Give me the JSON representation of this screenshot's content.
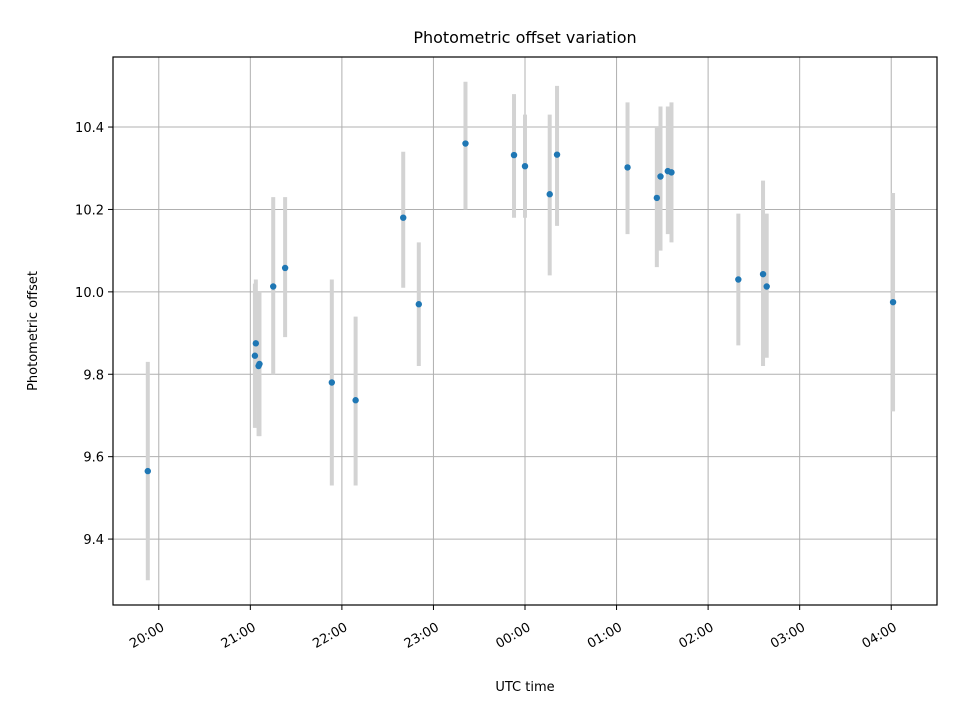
{
  "chart_data": {
    "type": "scatter",
    "title": "Photometric offset variation",
    "xlabel": "UTC time",
    "ylabel": "Photometric offset",
    "x_unit": "hours",
    "xlim": [
      19.5,
      28.5
    ],
    "ylim": [
      9.24,
      10.57
    ],
    "x_ticks": [
      {
        "value": 20,
        "label": "20:00"
      },
      {
        "value": 21,
        "label": "21:00"
      },
      {
        "value": 22,
        "label": "22:00"
      },
      {
        "value": 23,
        "label": "23:00"
      },
      {
        "value": 24,
        "label": "00:00"
      },
      {
        "value": 25,
        "label": "01:00"
      },
      {
        "value": 26,
        "label": "02:00"
      },
      {
        "value": 27,
        "label": "03:00"
      },
      {
        "value": 28,
        "label": "04:00"
      }
    ],
    "y_ticks": [
      {
        "value": 9.4,
        "label": "9.4"
      },
      {
        "value": 9.6,
        "label": "9.6"
      },
      {
        "value": 9.8,
        "label": "9.8"
      },
      {
        "value": 10.0,
        "label": "10.0"
      },
      {
        "value": 10.2,
        "label": "10.2"
      },
      {
        "value": 10.4,
        "label": "10.4"
      }
    ],
    "grid": true,
    "colors": {
      "point": "#1f77b4",
      "errorbar": "#d3d3d3"
    },
    "points": [
      {
        "x": 19.88,
        "y": 9.565,
        "low": 9.3,
        "high": 9.83
      },
      {
        "x": 21.05,
        "y": 9.845,
        "low": 9.67,
        "high": 10.02
      },
      {
        "x": 21.06,
        "y": 9.875,
        "low": 9.72,
        "high": 10.03
      },
      {
        "x": 21.09,
        "y": 9.82,
        "low": 9.65,
        "high": 9.99
      },
      {
        "x": 21.1,
        "y": 9.825,
        "low": 9.65,
        "high": 10.0
      },
      {
        "x": 21.25,
        "y": 10.013,
        "low": 9.8,
        "high": 10.23
      },
      {
        "x": 21.38,
        "y": 10.058,
        "low": 9.89,
        "high": 10.23
      },
      {
        "x": 21.89,
        "y": 9.78,
        "low": 9.53,
        "high": 10.03
      },
      {
        "x": 22.15,
        "y": 9.737,
        "low": 9.53,
        "high": 9.94
      },
      {
        "x": 22.67,
        "y": 10.18,
        "low": 10.01,
        "high": 10.34
      },
      {
        "x": 22.84,
        "y": 9.97,
        "low": 9.82,
        "high": 10.12
      },
      {
        "x": 23.35,
        "y": 10.36,
        "low": 10.2,
        "high": 10.51
      },
      {
        "x": 23.88,
        "y": 10.332,
        "low": 10.18,
        "high": 10.48
      },
      {
        "x": 24.0,
        "y": 10.305,
        "low": 10.18,
        "high": 10.43
      },
      {
        "x": 24.27,
        "y": 10.237,
        "low": 10.04,
        "high": 10.43
      },
      {
        "x": 24.35,
        "y": 10.333,
        "low": 10.16,
        "high": 10.5
      },
      {
        "x": 25.12,
        "y": 10.302,
        "low": 10.14,
        "high": 10.46
      },
      {
        "x": 25.44,
        "y": 10.228,
        "low": 10.06,
        "high": 10.4
      },
      {
        "x": 25.48,
        "y": 10.28,
        "low": 10.1,
        "high": 10.45
      },
      {
        "x": 25.56,
        "y": 10.293,
        "low": 10.14,
        "high": 10.45
      },
      {
        "x": 25.6,
        "y": 10.29,
        "low": 10.12,
        "high": 10.46
      },
      {
        "x": 26.33,
        "y": 10.03,
        "low": 9.87,
        "high": 10.19
      },
      {
        "x": 26.6,
        "y": 10.043,
        "low": 9.82,
        "high": 10.27
      },
      {
        "x": 26.64,
        "y": 10.013,
        "low": 9.84,
        "high": 10.19
      },
      {
        "x": 28.02,
        "y": 9.975,
        "low": 9.71,
        "high": 10.24
      }
    ]
  }
}
